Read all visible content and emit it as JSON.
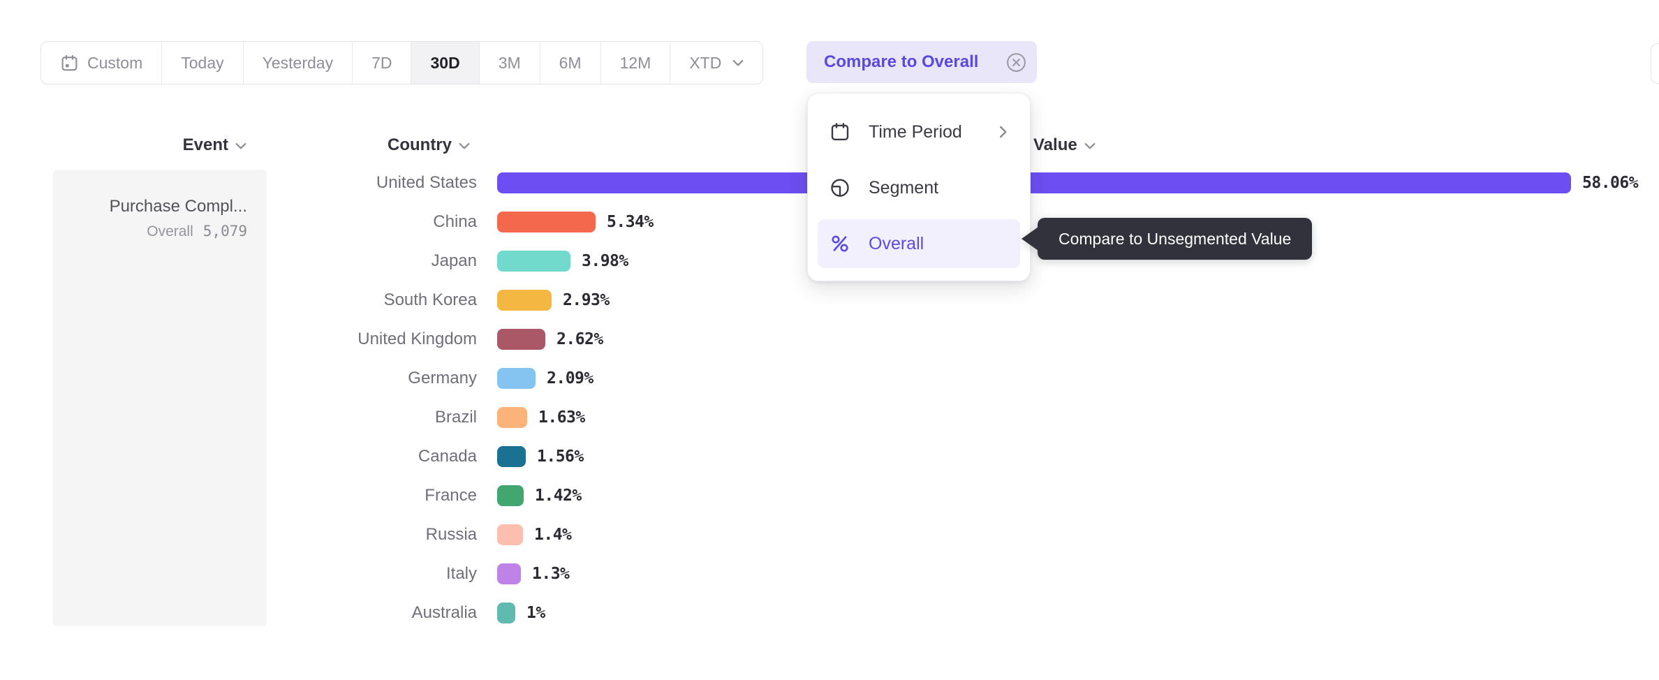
{
  "toolbar": {
    "items": [
      {
        "label": "Custom",
        "icon": "calendar",
        "active": false,
        "chevron": false
      },
      {
        "label": "Today",
        "icon": null,
        "active": false,
        "chevron": false
      },
      {
        "label": "Yesterday",
        "icon": null,
        "active": false,
        "chevron": false
      },
      {
        "label": "7D",
        "icon": null,
        "active": false,
        "chevron": false
      },
      {
        "label": "30D",
        "icon": null,
        "active": true,
        "chevron": false
      },
      {
        "label": "3M",
        "icon": null,
        "active": false,
        "chevron": false
      },
      {
        "label": "6M",
        "icon": null,
        "active": false,
        "chevron": false
      },
      {
        "label": "12M",
        "icon": null,
        "active": false,
        "chevron": false
      },
      {
        "label": "XTD",
        "icon": null,
        "active": false,
        "chevron": true
      }
    ]
  },
  "compare_chip": {
    "label": "Compare to Overall",
    "accent_color": "#5A49E0",
    "bg_color": "#E9E6FA"
  },
  "menu": {
    "items": [
      {
        "label": "Time Period",
        "icon": "calendar-icon",
        "submenu": true,
        "selected": false
      },
      {
        "label": "Segment",
        "icon": "segment-icon",
        "submenu": false,
        "selected": false
      },
      {
        "label": "Overall",
        "icon": "percent-icon",
        "submenu": false,
        "selected": true
      }
    ],
    "selected_color": "#5B4BE0",
    "selected_bg": "#F2F0FC"
  },
  "tooltip": {
    "text": "Compare to Unsegmented Value",
    "bg": "#32323C"
  },
  "event_panel": {
    "header": "Event",
    "event_name": "Purchase Compl...",
    "overall_label": "Overall",
    "overall_value": "5,079"
  },
  "columns": {
    "event": "Event",
    "country": "Country",
    "value": "Value"
  },
  "chart_data": {
    "type": "bar",
    "orientation": "horizontal",
    "title": "",
    "xlabel": "Value",
    "ylabel": "Country",
    "grid": false,
    "legend": false,
    "xlim": [
      0,
      60
    ],
    "unit": "percent",
    "categories": [
      "United States",
      "China",
      "Japan",
      "South Korea",
      "United Kingdom",
      "Germany",
      "Brazil",
      "Canada",
      "France",
      "Russia",
      "Italy",
      "Australia"
    ],
    "values": [
      58.06,
      5.34,
      3.98,
      2.93,
      2.62,
      2.09,
      1.63,
      1.56,
      1.42,
      1.4,
      1.3,
      1
    ],
    "value_labels": [
      "58.06%",
      "5.34%",
      "3.98%",
      "2.93%",
      "2.62%",
      "2.09%",
      "1.63%",
      "1.56%",
      "1.42%",
      "1.4%",
      "1.3%",
      "1%"
    ],
    "bar_colors": [
      "#6C4EF2",
      "#F4684E",
      "#72DACD",
      "#F4B842",
      "#AA5768",
      "#85C4F0",
      "#FBB379",
      "#1B7191",
      "#42A76E",
      "#FCBFAF",
      "#BF82E6",
      "#5FBAAF"
    ]
  }
}
